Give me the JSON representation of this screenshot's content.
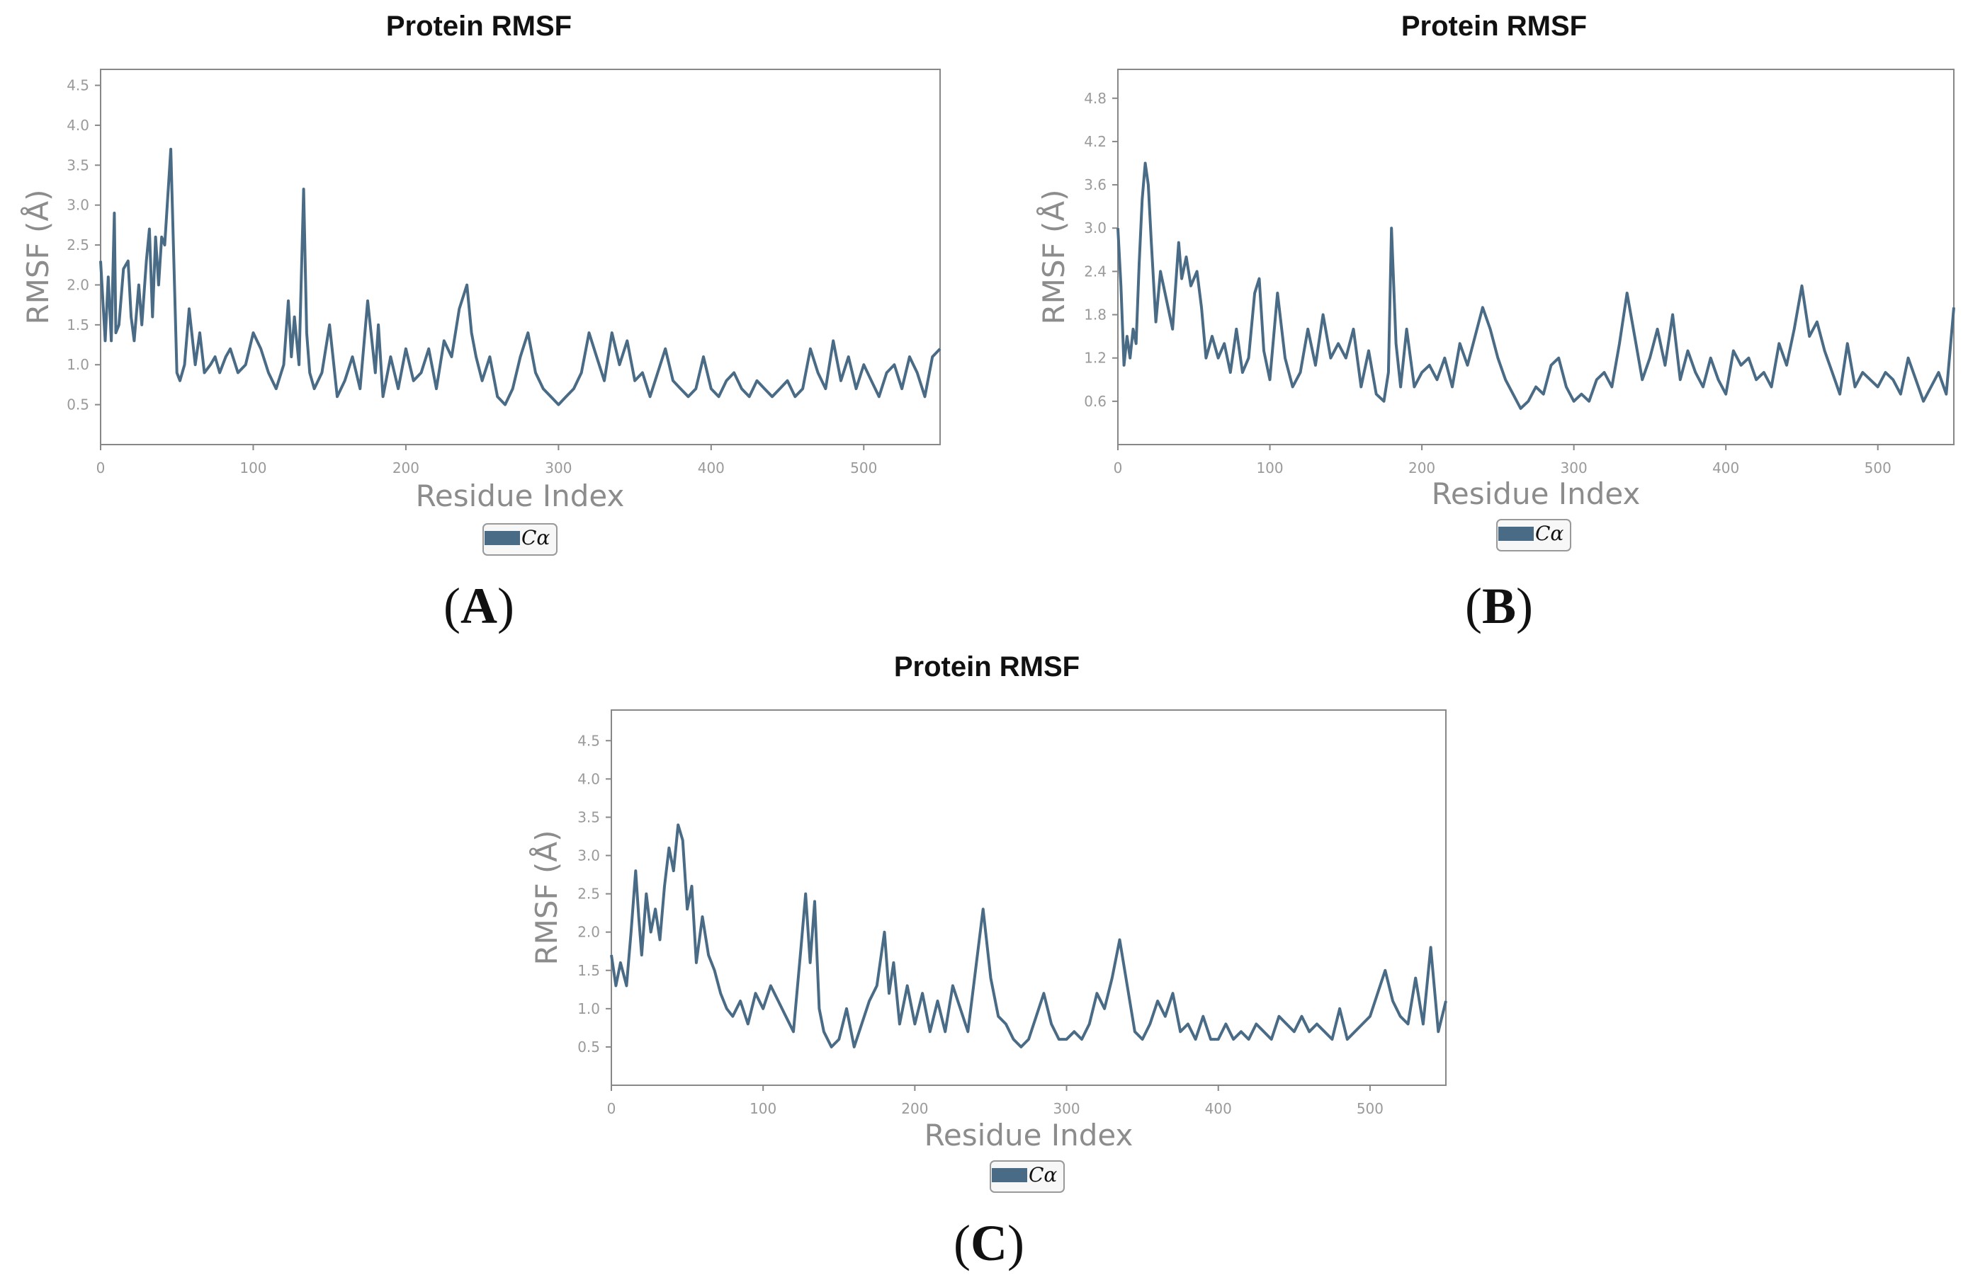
{
  "figure": {
    "series_color": "#4a6b85"
  },
  "chart_data": [
    {
      "id": "A",
      "type": "line",
      "title": "Protein RMSF",
      "xlabel": "Residue Index",
      "ylabel": "RMSF (Å)",
      "panel_label": "A",
      "xlim": [
        0,
        550
      ],
      "ylim": [
        0,
        4.7
      ],
      "xticks": [
        0,
        100,
        200,
        300,
        400,
        500
      ],
      "xtick_labels": [
        "0",
        "100",
        "200",
        "300",
        "400",
        "500"
      ],
      "yticks": [
        0.5,
        1.0,
        1.5,
        2.0,
        2.5,
        3.0,
        3.5,
        4.0,
        4.5
      ],
      "ytick_labels": [
        "0.5",
        "1.0",
        "1.5",
        "2.0",
        "2.5",
        "3.0",
        "3.5",
        "4.0",
        "4.5"
      ],
      "legend": [
        "Cα"
      ],
      "series": [
        {
          "name": "Cα",
          "x": [
            0,
            3,
            5,
            7,
            9,
            10,
            12,
            15,
            18,
            20,
            22,
            25,
            27,
            30,
            32,
            34,
            36,
            38,
            40,
            42,
            44,
            46,
            48,
            50,
            52,
            55,
            58,
            62,
            65,
            68,
            72,
            75,
            78,
            82,
            85,
            90,
            95,
            100,
            105,
            110,
            115,
            120,
            123,
            125,
            127,
            130,
            133,
            135,
            137,
            140,
            145,
            150,
            155,
            160,
            165,
            170,
            175,
            180,
            182,
            185,
            190,
            195,
            200,
            205,
            210,
            215,
            220,
            225,
            230,
            235,
            240,
            243,
            246,
            250,
            255,
            260,
            265,
            270,
            275,
            280,
            285,
            290,
            295,
            300,
            305,
            310,
            315,
            320,
            325,
            330,
            335,
            340,
            345,
            350,
            355,
            360,
            365,
            370,
            375,
            380,
            385,
            390,
            395,
            400,
            405,
            410,
            415,
            420,
            425,
            430,
            435,
            440,
            445,
            450,
            455,
            460,
            465,
            470,
            475,
            480,
            485,
            490,
            495,
            500,
            505,
            510,
            515,
            520,
            525,
            530,
            535,
            540,
            545,
            550
          ],
          "y": [
            2.3,
            1.3,
            2.1,
            1.3,
            2.9,
            1.4,
            1.5,
            2.2,
            2.3,
            1.6,
            1.3,
            2.0,
            1.5,
            2.3,
            2.7,
            1.6,
            2.6,
            2.0,
            2.6,
            2.5,
            3.1,
            3.7,
            2.3,
            0.9,
            0.8,
            1.0,
            1.7,
            1.0,
            1.4,
            0.9,
            1.0,
            1.1,
            0.9,
            1.1,
            1.2,
            0.9,
            1.0,
            1.4,
            1.2,
            0.9,
            0.7,
            1.0,
            1.8,
            1.1,
            1.6,
            1.0,
            3.2,
            1.4,
            0.9,
            0.7,
            0.9,
            1.5,
            0.6,
            0.8,
            1.1,
            0.7,
            1.8,
            0.9,
            1.5,
            0.6,
            1.1,
            0.7,
            1.2,
            0.8,
            0.9,
            1.2,
            0.7,
            1.3,
            1.1,
            1.7,
            2.0,
            1.4,
            1.1,
            0.8,
            1.1,
            0.6,
            0.5,
            0.7,
            1.1,
            1.4,
            0.9,
            0.7,
            0.6,
            0.5,
            0.6,
            0.7,
            0.9,
            1.4,
            1.1,
            0.8,
            1.4,
            1.0,
            1.3,
            0.8,
            0.9,
            0.6,
            0.9,
            1.2,
            0.8,
            0.7,
            0.6,
            0.7,
            1.1,
            0.7,
            0.6,
            0.8,
            0.9,
            0.7,
            0.6,
            0.8,
            0.7,
            0.6,
            0.7,
            0.8,
            0.6,
            0.7,
            1.2,
            0.9,
            0.7,
            1.3,
            0.8,
            1.1,
            0.7,
            1.0,
            0.8,
            0.6,
            0.9,
            1.0,
            0.7,
            1.1,
            0.9,
            0.6,
            1.1,
            1.2
          ]
        }
      ]
    },
    {
      "id": "B",
      "type": "line",
      "title": "Protein RMSF",
      "xlabel": "Residue Index",
      "ylabel": "RMSF (Å)",
      "panel_label": "B",
      "xlim": [
        0,
        550
      ],
      "ylim": [
        0,
        5.2
      ],
      "xticks": [
        0,
        100,
        200,
        300,
        400,
        500
      ],
      "xtick_labels": [
        "0",
        "100",
        "200",
        "300",
        "400",
        "500"
      ],
      "yticks": [
        0.6,
        1.2,
        1.8,
        2.4,
        3.0,
        3.6,
        4.2,
        4.8
      ],
      "ytick_labels": [
        "0.6",
        "1.2",
        "1.8",
        "2.4",
        "3.0",
        "3.6",
        "4.2",
        "4.8"
      ],
      "legend": [
        "Cα"
      ],
      "series": [
        {
          "name": "Cα",
          "x": [
            0,
            2,
            4,
            6,
            8,
            10,
            12,
            14,
            16,
            18,
            20,
            22,
            25,
            28,
            32,
            36,
            40,
            42,
            45,
            48,
            52,
            55,
            58,
            62,
            66,
            70,
            74,
            78,
            82,
            86,
            90,
            93,
            96,
            100,
            105,
            110,
            115,
            120,
            125,
            130,
            135,
            140,
            145,
            150,
            155,
            160,
            165,
            170,
            175,
            178,
            180,
            183,
            186,
            190,
            195,
            200,
            205,
            210,
            215,
            220,
            225,
            230,
            235,
            240,
            245,
            250,
            255,
            260,
            265,
            270,
            275,
            280,
            285,
            290,
            295,
            300,
            305,
            310,
            315,
            320,
            325,
            330,
            335,
            340,
            345,
            350,
            355,
            360,
            365,
            370,
            375,
            380,
            385,
            390,
            395,
            400,
            405,
            410,
            415,
            420,
            425,
            430,
            435,
            440,
            445,
            450,
            455,
            460,
            465,
            470,
            475,
            480,
            485,
            490,
            495,
            500,
            505,
            510,
            515,
            520,
            525,
            530,
            535,
            540,
            545,
            550
          ],
          "y": [
            3.0,
            2.2,
            1.1,
            1.5,
            1.2,
            1.6,
            1.4,
            2.5,
            3.4,
            3.9,
            3.6,
            2.8,
            1.7,
            2.4,
            2.0,
            1.6,
            2.8,
            2.3,
            2.6,
            2.2,
            2.4,
            1.9,
            1.2,
            1.5,
            1.2,
            1.4,
            1.0,
            1.6,
            1.0,
            1.2,
            2.1,
            2.3,
            1.3,
            0.9,
            2.1,
            1.2,
            0.8,
            1.0,
            1.6,
            1.1,
            1.8,
            1.2,
            1.4,
            1.2,
            1.6,
            0.8,
            1.3,
            0.7,
            0.6,
            1.0,
            3.0,
            1.4,
            0.8,
            1.6,
            0.8,
            1.0,
            1.1,
            0.9,
            1.2,
            0.8,
            1.4,
            1.1,
            1.5,
            1.9,
            1.6,
            1.2,
            0.9,
            0.7,
            0.5,
            0.6,
            0.8,
            0.7,
            1.1,
            1.2,
            0.8,
            0.6,
            0.7,
            0.6,
            0.9,
            1.0,
            0.8,
            1.4,
            2.1,
            1.5,
            0.9,
            1.2,
            1.6,
            1.1,
            1.8,
            0.9,
            1.3,
            1.0,
            0.8,
            1.2,
            0.9,
            0.7,
            1.3,
            1.1,
            1.2,
            0.9,
            1.0,
            0.8,
            1.4,
            1.1,
            1.6,
            2.2,
            1.5,
            1.7,
            1.3,
            1.0,
            0.7,
            1.4,
            0.8,
            1.0,
            0.9,
            0.8,
            1.0,
            0.9,
            0.7,
            1.2,
            0.9,
            0.6,
            0.8,
            1.0,
            0.7,
            1.9
          ]
        }
      ]
    },
    {
      "id": "C",
      "type": "line",
      "title": "Protein RMSF",
      "xlabel": "Residue Index",
      "ylabel": "RMSF (Å)",
      "panel_label": "C",
      "xlim": [
        0,
        550
      ],
      "ylim": [
        0,
        4.9
      ],
      "xticks": [
        0,
        100,
        200,
        300,
        400,
        500
      ],
      "xtick_labels": [
        "0",
        "100",
        "200",
        "300",
        "400",
        "500"
      ],
      "yticks": [
        0.5,
        1.0,
        1.5,
        2.0,
        2.5,
        3.0,
        3.5,
        4.0,
        4.5
      ],
      "ytick_labels": [
        "0.5",
        "1.0",
        "1.5",
        "2.0",
        "2.5",
        "3.0",
        "3.5",
        "4.0",
        "4.5"
      ],
      "legend": [
        "Cα"
      ],
      "series": [
        {
          "name": "Cα",
          "x": [
            0,
            3,
            6,
            10,
            13,
            16,
            18,
            20,
            23,
            26,
            29,
            32,
            35,
            38,
            41,
            44,
            47,
            50,
            53,
            56,
            60,
            64,
            68,
            72,
            76,
            80,
            85,
            90,
            95,
            100,
            105,
            110,
            115,
            120,
            125,
            128,
            131,
            134,
            137,
            140,
            145,
            150,
            155,
            160,
            165,
            170,
            175,
            180,
            183,
            186,
            190,
            195,
            200,
            205,
            210,
            215,
            220,
            225,
            230,
            235,
            240,
            245,
            250,
            255,
            260,
            265,
            270,
            275,
            280,
            285,
            290,
            295,
            300,
            305,
            310,
            315,
            320,
            325,
            330,
            335,
            340,
            345,
            350,
            355,
            360,
            365,
            370,
            375,
            380,
            385,
            390,
            395,
            400,
            405,
            410,
            415,
            420,
            425,
            430,
            435,
            440,
            445,
            450,
            455,
            460,
            465,
            470,
            475,
            480,
            485,
            490,
            495,
            500,
            505,
            510,
            515,
            520,
            525,
            530,
            535,
            540,
            545,
            550
          ],
          "y": [
            1.7,
            1.3,
            1.6,
            1.3,
            2.0,
            2.8,
            2.2,
            1.7,
            2.5,
            2.0,
            2.3,
            1.9,
            2.6,
            3.1,
            2.8,
            3.4,
            3.2,
            2.3,
            2.6,
            1.6,
            2.2,
            1.7,
            1.5,
            1.2,
            1.0,
            0.9,
            1.1,
            0.8,
            1.2,
            1.0,
            1.3,
            1.1,
            0.9,
            0.7,
            1.8,
            2.5,
            1.6,
            2.4,
            1.0,
            0.7,
            0.5,
            0.6,
            1.0,
            0.5,
            0.8,
            1.1,
            1.3,
            2.0,
            1.2,
            1.6,
            0.8,
            1.3,
            0.8,
            1.2,
            0.7,
            1.1,
            0.7,
            1.3,
            1.0,
            0.7,
            1.5,
            2.3,
            1.4,
            0.9,
            0.8,
            0.6,
            0.5,
            0.6,
            0.9,
            1.2,
            0.8,
            0.6,
            0.6,
            0.7,
            0.6,
            0.8,
            1.2,
            1.0,
            1.4,
            1.9,
            1.3,
            0.7,
            0.6,
            0.8,
            1.1,
            0.9,
            1.2,
            0.7,
            0.8,
            0.6,
            0.9,
            0.6,
            0.6,
            0.8,
            0.6,
            0.7,
            0.6,
            0.8,
            0.7,
            0.6,
            0.9,
            0.8,
            0.7,
            0.9,
            0.7,
            0.8,
            0.7,
            0.6,
            1.0,
            0.6,
            0.7,
            0.8,
            0.9,
            1.2,
            1.5,
            1.1,
            0.9,
            0.8,
            1.4,
            0.8,
            1.8,
            0.7,
            1.1
          ]
        }
      ]
    }
  ]
}
